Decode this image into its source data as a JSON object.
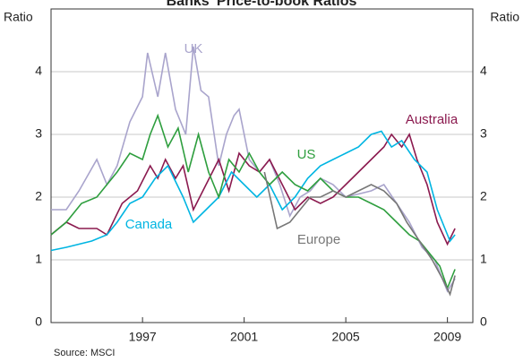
{
  "chart_data": {
    "type": "line",
    "title": "Banks' Price-to-book Ratios",
    "y_label": "Ratio",
    "y2_label": "Ratio",
    "source": "Source: MSCI",
    "xlim": [
      1993.4,
      2010.0
    ],
    "xticks": [
      1997,
      2001,
      2005,
      2009
    ],
    "ylim": [
      0,
      5
    ],
    "yticks": [
      0,
      1,
      2,
      3,
      4
    ],
    "y2lim": [
      0,
      5
    ],
    "y2ticks": [
      0,
      1,
      2,
      3,
      4
    ],
    "grid": true,
    "series": [
      {
        "name": "UK",
        "color": "#a9a4cc",
        "x": [
          1993.4,
          1994,
          1994.5,
          1995.2,
          1995.6,
          1996,
          1996.5,
          1997,
          1997.2,
          1997.6,
          1997.9,
          1998.3,
          1998.7,
          1999.0,
          1999.3,
          1999.6,
          2000.0,
          2000.3,
          2000.6,
          2000.8,
          2001.2,
          2001.6,
          2002.0,
          2002.4,
          2002.8,
          2003.2,
          2003.6,
          2004.0,
          2004.5,
          2005.0,
          2006.0,
          2006.5,
          2007.0,
          2007.5,
          2008.0,
          2008.5,
          2009.0,
          2009.3
        ],
        "values": [
          1.8,
          1.8,
          2.1,
          2.6,
          2.2,
          2.5,
          3.2,
          3.6,
          4.3,
          3.6,
          4.3,
          3.4,
          3.0,
          4.4,
          3.7,
          3.6,
          2.5,
          3.0,
          3.3,
          3.4,
          2.6,
          2.4,
          2.6,
          2.2,
          1.7,
          2.0,
          2.1,
          2.3,
          2.2,
          2.0,
          2.1,
          2.2,
          1.9,
          1.6,
          1.2,
          1.0,
          0.5,
          0.7
        ]
      },
      {
        "name": "Australia",
        "color": "#8b1a4f",
        "x": [
          1993.4,
          1994,
          1994.5,
          1995.2,
          1995.6,
          1996.2,
          1996.8,
          1997.3,
          1997.6,
          1997.9,
          1998.3,
          1998.6,
          1999,
          1999.5,
          2000.0,
          2000.4,
          2000.8,
          2001.2,
          2001.6,
          2002,
          2002.5,
          2003.0,
          2003.5,
          2004.0,
          2004.5,
          2005.0,
          2005.5,
          2006.0,
          2006.5,
          2006.8,
          2007.2,
          2007.5,
          2007.8,
          2008.2,
          2008.6,
          2009.0,
          2009.3
        ],
        "values": [
          1.4,
          1.6,
          1.5,
          1.5,
          1.4,
          1.9,
          2.1,
          2.5,
          2.3,
          2.6,
          2.3,
          2.5,
          1.8,
          2.2,
          2.6,
          2.1,
          2.7,
          2.5,
          2.4,
          2.6,
          2.2,
          1.8,
          2.0,
          1.9,
          2.0,
          2.2,
          2.4,
          2.6,
          2.8,
          3.0,
          2.8,
          3.0,
          2.6,
          2.2,
          1.6,
          1.25,
          1.5
        ]
      },
      {
        "name": "Canada",
        "color": "#00b5e2",
        "x": [
          1993.4,
          1994,
          1995,
          1995.6,
          1996,
          1996.5,
          1997,
          1997.5,
          1998,
          1998.6,
          1999,
          1999.5,
          2000,
          2000.5,
          2001,
          2001.5,
          2002,
          2002.5,
          2003,
          2003.5,
          2004,
          2004.5,
          2005,
          2005.5,
          2006,
          2006.4,
          2006.8,
          2007.2,
          2007.7,
          2008.2,
          2008.6,
          2008.9,
          2009.1,
          2009.3
        ],
        "values": [
          1.15,
          1.2,
          1.3,
          1.4,
          1.6,
          1.9,
          2.0,
          2.3,
          2.5,
          2.0,
          1.6,
          1.8,
          2.0,
          2.4,
          2.2,
          2.0,
          2.2,
          1.8,
          2.0,
          2.3,
          2.5,
          2.6,
          2.7,
          2.8,
          3.0,
          3.05,
          2.8,
          2.9,
          2.6,
          2.4,
          1.8,
          1.5,
          1.3,
          1.4
        ]
      },
      {
        "name": "US",
        "color": "#2e9e3e",
        "x": [
          1993.4,
          1994,
          1994.6,
          1995.2,
          1995.6,
          1996.0,
          1996.5,
          1997.0,
          1997.3,
          1997.6,
          1998.0,
          1998.4,
          1998.8,
          1999.2,
          1999.6,
          2000.0,
          2000.4,
          2000.8,
          2001.2,
          2001.6,
          2002.0,
          2002.5,
          2003.0,
          2003.5,
          2004.0,
          2004.5,
          2005.0,
          2005.5,
          2006.0,
          2006.5,
          2007.0,
          2007.5,
          2007.9,
          2008.3,
          2008.7,
          2009.0,
          2009.3
        ],
        "values": [
          1.4,
          1.6,
          1.9,
          2.0,
          2.2,
          2.4,
          2.7,
          2.6,
          3.0,
          3.3,
          2.8,
          3.1,
          2.4,
          3.0,
          2.4,
          2.0,
          2.6,
          2.4,
          2.7,
          2.4,
          2.2,
          2.4,
          2.2,
          2.1,
          2.3,
          2.1,
          2.0,
          2.0,
          1.9,
          1.8,
          1.6,
          1.4,
          1.3,
          1.1,
          0.9,
          0.55,
          0.85
        ]
      },
      {
        "name": "Europe",
        "color": "#777777",
        "x": [
          2001.8,
          2002.3,
          2002.8,
          2003.2,
          2003.6,
          2004.0,
          2004.5,
          2005.0,
          2005.5,
          2006.0,
          2006.5,
          2007.0,
          2007.4,
          2007.9,
          2008.4,
          2008.8,
          2009.1,
          2009.3
        ],
        "values": [
          2.4,
          1.5,
          1.6,
          1.8,
          2.0,
          2.0,
          2.1,
          2.0,
          2.1,
          2.2,
          2.1,
          1.9,
          1.6,
          1.3,
          1.0,
          0.7,
          0.45,
          0.75
        ]
      }
    ]
  }
}
